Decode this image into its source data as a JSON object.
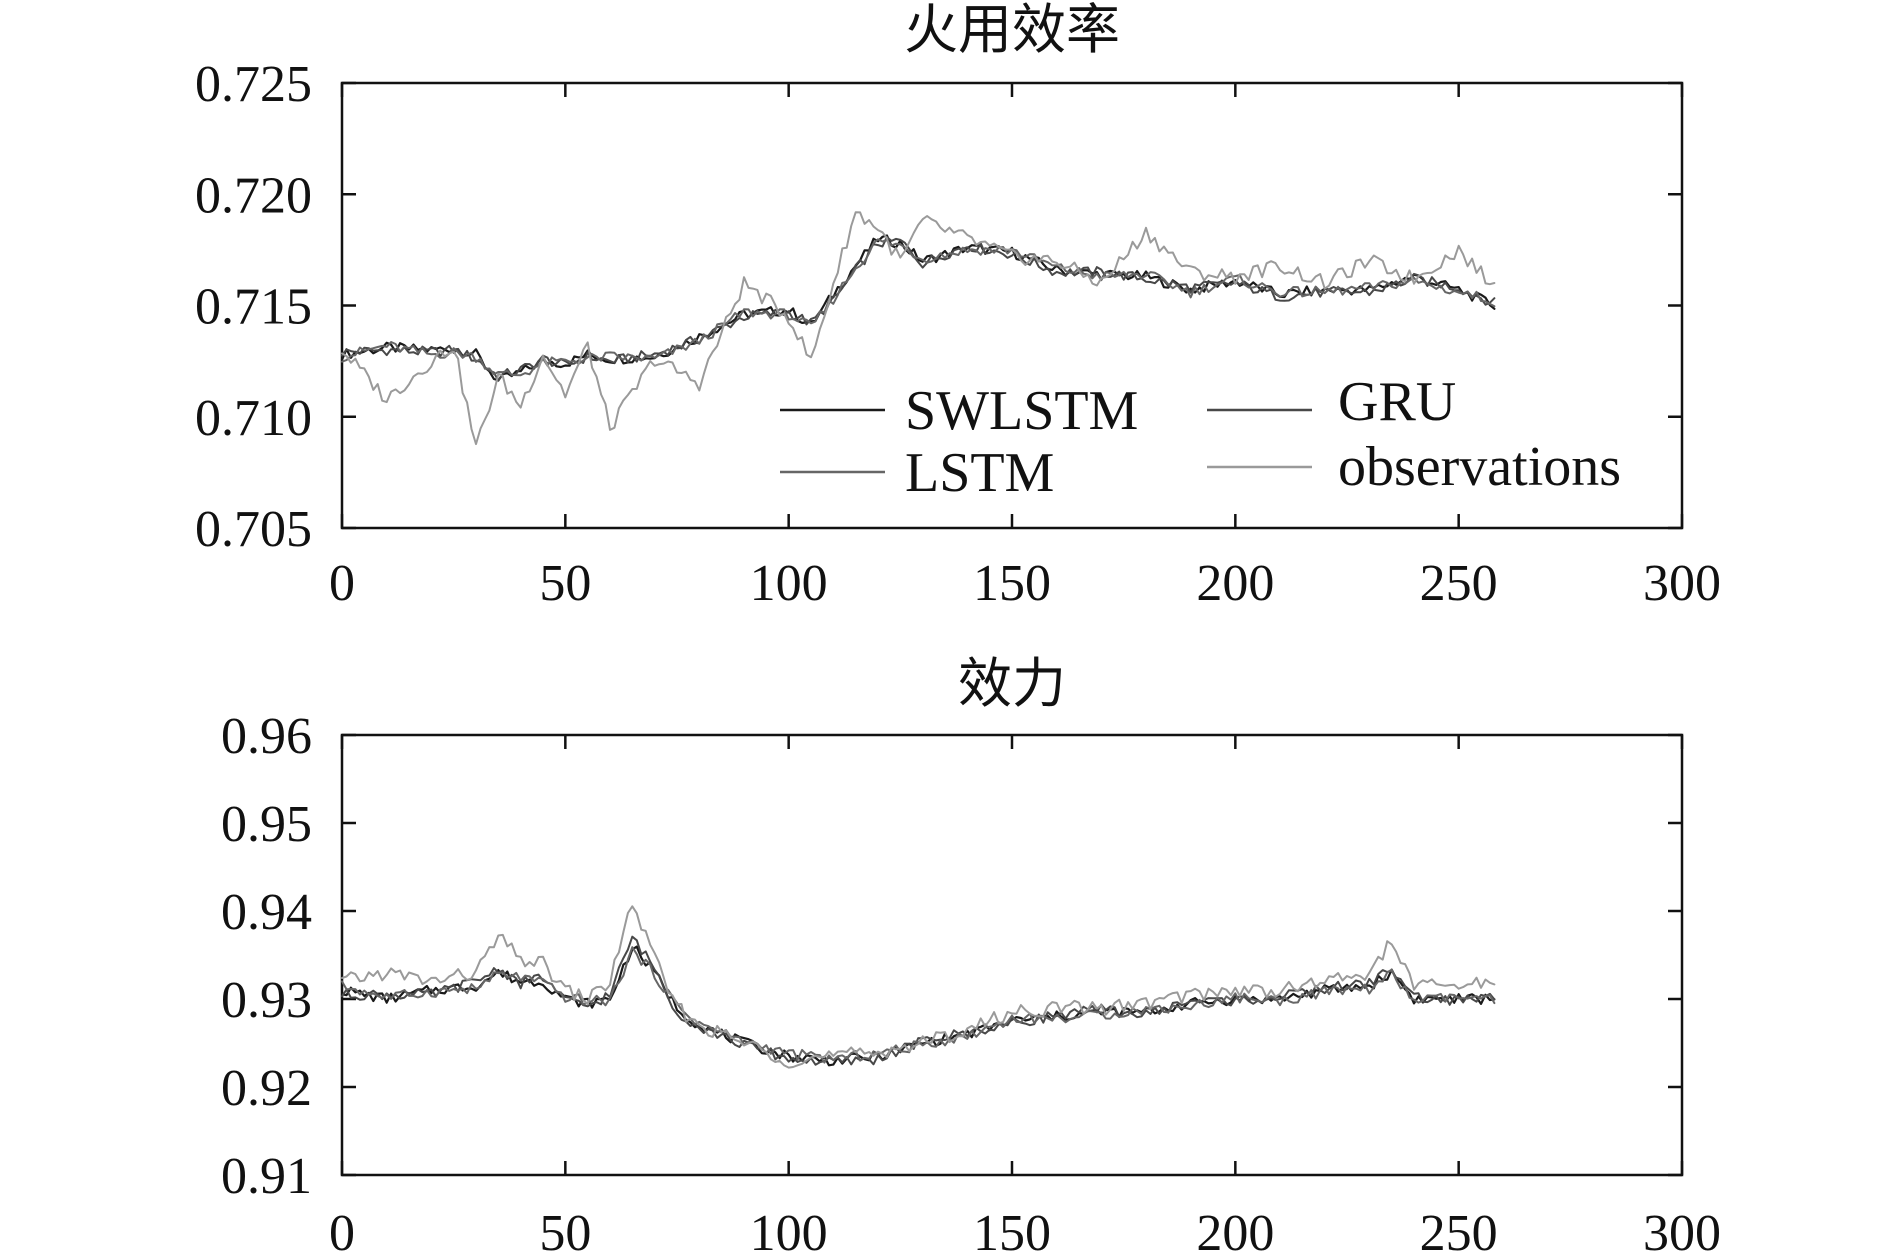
{
  "chart_data": [
    {
      "type": "line",
      "title": "火用效率",
      "xlabel": "",
      "ylabel": "",
      "xlim": [
        0,
        300
      ],
      "ylim": [
        0.705,
        0.725
      ],
      "xticks": [
        "0",
        "50",
        "100",
        "150",
        "200",
        "250",
        "300"
      ],
      "yticks": [
        "0.705",
        "0.710",
        "0.715",
        "0.720",
        "0.725"
      ],
      "xtick_values": [
        0,
        50,
        100,
        150,
        200,
        250,
        300
      ],
      "ytick_values": [
        0.705,
        0.71,
        0.715,
        0.72,
        0.725
      ],
      "legend": {
        "position": "bottom-right",
        "entries": [
          "SWLSTM",
          "GRU",
          "LSTM",
          "observations"
        ]
      },
      "x": [
        0,
        10,
        20,
        25,
        30,
        35,
        40,
        45,
        50,
        55,
        60,
        70,
        80,
        90,
        100,
        105,
        110,
        115,
        120,
        125,
        130,
        140,
        150,
        160,
        170,
        180,
        190,
        200,
        210,
        220,
        230,
        240,
        250,
        258
      ],
      "series": [
        {
          "name": "SWLSTM",
          "color": "#1a1a1a",
          "width": 2.2,
          "values": [
            0.7128,
            0.7131,
            0.713,
            0.7131,
            0.7128,
            0.7116,
            0.712,
            0.7125,
            0.7124,
            0.7128,
            0.7126,
            0.7127,
            0.7136,
            0.7146,
            0.7148,
            0.7141,
            0.7155,
            0.7168,
            0.718,
            0.7178,
            0.717,
            0.7176,
            0.7174,
            0.7166,
            0.7164,
            0.7163,
            0.7157,
            0.7161,
            0.7155,
            0.7157,
            0.7157,
            0.7163,
            0.7157,
            0.715
          ]
        },
        {
          "name": "GRU",
          "color": "#484848",
          "width": 2.0,
          "values": [
            0.7129,
            0.713,
            0.7129,
            0.713,
            0.7126,
            0.7118,
            0.7121,
            0.7126,
            0.7123,
            0.7127,
            0.7125,
            0.7128,
            0.7135,
            0.7145,
            0.7147,
            0.7142,
            0.7152,
            0.7166,
            0.7178,
            0.7179,
            0.7169,
            0.7177,
            0.7173,
            0.7165,
            0.7165,
            0.7162,
            0.7158,
            0.716,
            0.7154,
            0.7156,
            0.7156,
            0.7162,
            0.7158,
            0.7151
          ]
        },
        {
          "name": "LSTM",
          "color": "#666666",
          "width": 2.0,
          "values": [
            0.7127,
            0.7132,
            0.7128,
            0.7129,
            0.7127,
            0.7119,
            0.7119,
            0.7124,
            0.7125,
            0.7126,
            0.7127,
            0.7126,
            0.7134,
            0.7147,
            0.7146,
            0.714,
            0.7153,
            0.7167,
            0.7179,
            0.7177,
            0.7171,
            0.7175,
            0.7175,
            0.7167,
            0.7163,
            0.7164,
            0.7156,
            0.7162,
            0.7156,
            0.7156,
            0.7158,
            0.7161,
            0.7156,
            0.7152
          ]
        },
        {
          "name": "observations",
          "color": "#9a9a9a",
          "width": 2.0,
          "values": [
            0.713,
            0.7108,
            0.7125,
            0.7132,
            0.7086,
            0.7118,
            0.7105,
            0.7128,
            0.711,
            0.7132,
            0.7095,
            0.7126,
            0.7115,
            0.716,
            0.7145,
            0.7125,
            0.716,
            0.7192,
            0.7185,
            0.717,
            0.7188,
            0.718,
            0.7172,
            0.717,
            0.716,
            0.7183,
            0.7165,
            0.7163,
            0.7168,
            0.716,
            0.717,
            0.7162,
            0.7175,
            0.7158
          ]
        }
      ]
    },
    {
      "type": "line",
      "title": "效力",
      "xlabel": "",
      "ylabel": "",
      "xlim": [
        0,
        300
      ],
      "ylim": [
        0.91,
        0.96
      ],
      "xticks": [
        "0",
        "50",
        "100",
        "150",
        "200",
        "250",
        "300"
      ],
      "yticks": [
        "0.91",
        "0.92",
        "0.93",
        "0.94",
        "0.95",
        "0.96"
      ],
      "xtick_values": [
        0,
        50,
        100,
        150,
        200,
        250,
        300
      ],
      "ytick_values": [
        0.91,
        0.92,
        0.93,
        0.94,
        0.95,
        0.96
      ],
      "x": [
        0,
        10,
        20,
        30,
        35,
        40,
        45,
        50,
        55,
        60,
        65,
        70,
        75,
        80,
        90,
        100,
        110,
        120,
        130,
        140,
        150,
        160,
        170,
        180,
        190,
        200,
        210,
        220,
        230,
        235,
        240,
        250,
        258
      ],
      "series": [
        {
          "name": "SWLSTM",
          "color": "#1a1a1a",
          "width": 2.2,
          "values": [
            0.931,
            0.93,
            0.931,
            0.9315,
            0.933,
            0.932,
            0.932,
            0.93,
            0.9295,
            0.93,
            0.936,
            0.933,
            0.929,
            0.927,
            0.925,
            0.9235,
            0.923,
            0.9235,
            0.925,
            0.926,
            0.9275,
            0.928,
            0.9285,
            0.9285,
            0.9295,
            0.93,
            0.93,
            0.931,
            0.9315,
            0.933,
            0.93,
            0.93,
            0.93
          ]
        },
        {
          "name": "GRU",
          "color": "#484848",
          "width": 2.0,
          "values": [
            0.9305,
            0.9305,
            0.9305,
            0.932,
            0.9335,
            0.9318,
            0.9325,
            0.9298,
            0.9292,
            0.9305,
            0.937,
            0.9335,
            0.9285,
            0.9268,
            0.9248,
            0.9232,
            0.9228,
            0.9232,
            0.9252,
            0.9262,
            0.9272,
            0.9282,
            0.9288,
            0.9282,
            0.9298,
            0.9298,
            0.9302,
            0.9312,
            0.9318,
            0.9335,
            0.9302,
            0.9298,
            0.9302
          ]
        },
        {
          "name": "LSTM",
          "color": "#666666",
          "width": 2.0,
          "values": [
            0.9315,
            0.9302,
            0.9308,
            0.9312,
            0.9328,
            0.9325,
            0.9318,
            0.9302,
            0.9298,
            0.9298,
            0.9355,
            0.9328,
            0.9292,
            0.9272,
            0.9252,
            0.9238,
            0.9232,
            0.9238,
            0.9248,
            0.9258,
            0.9278,
            0.9278,
            0.9282,
            0.9288,
            0.9292,
            0.9302,
            0.9298,
            0.9308,
            0.9312,
            0.9328,
            0.9298,
            0.9302,
            0.9298
          ]
        },
        {
          "name": "observations",
          "color": "#9a9a9a",
          "width": 2.0,
          "values": [
            0.932,
            0.933,
            0.932,
            0.933,
            0.937,
            0.9345,
            0.934,
            0.931,
            0.93,
            0.932,
            0.941,
            0.9345,
            0.929,
            0.927,
            0.925,
            0.923,
            0.9235,
            0.924,
            0.925,
            0.9265,
            0.9285,
            0.929,
            0.929,
            0.9295,
            0.9305,
            0.931,
            0.931,
            0.932,
            0.933,
            0.9365,
            0.9315,
            0.9315,
            0.932
          ]
        }
      ]
    }
  ]
}
